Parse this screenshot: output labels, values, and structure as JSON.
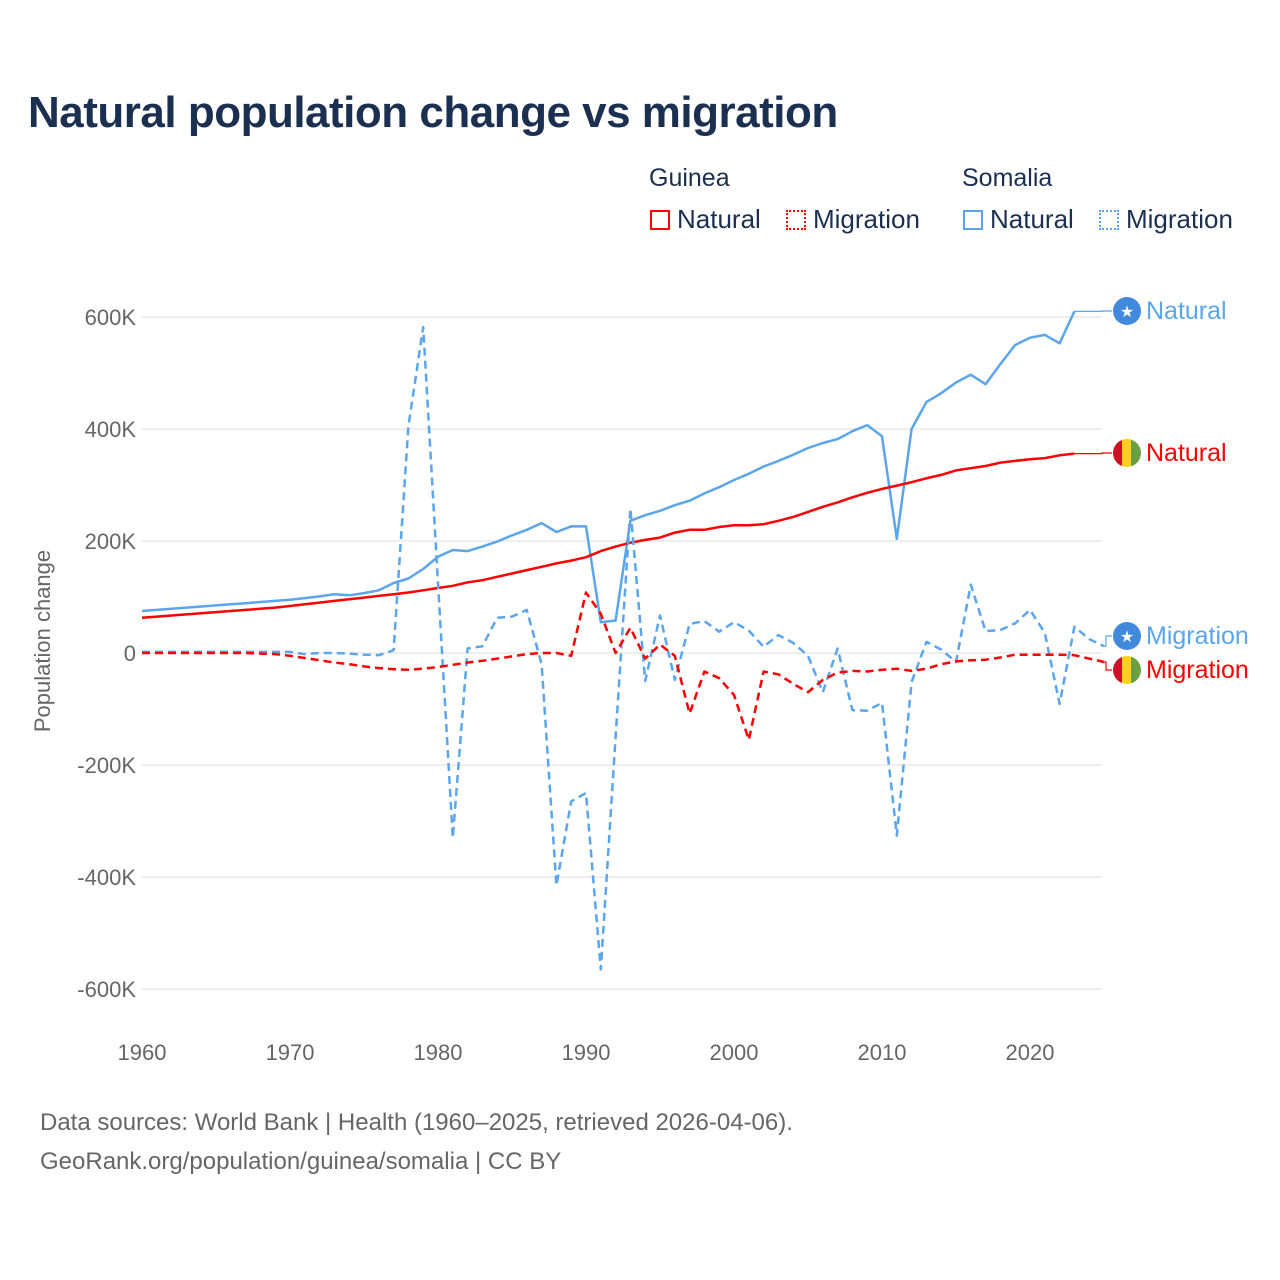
{
  "title": "Natural population change vs migration",
  "legend": {
    "groups": [
      {
        "name": "Guinea",
        "items": [
          "Natural",
          "Migration"
        ],
        "color": "#ff0000"
      },
      {
        "name": "Somalia",
        "items": [
          "Natural",
          "Migration"
        ],
        "color": "#5aa5ec"
      }
    ]
  },
  "footer": {
    "line1": "Data sources: World Bank | Health (1960–2025, retrieved 2026-04-06).",
    "line2": "GeoRank.org/population/guinea/somalia | CC BY"
  },
  "chart_data": {
    "type": "line",
    "title": "Natural population change vs migration",
    "xlabel": "",
    "ylabel": "Population change",
    "xlim": [
      1960,
      2025
    ],
    "ylim": [
      -600000,
      600000
    ],
    "x_ticks": [
      "1960",
      "1970",
      "1980",
      "1990",
      "2000",
      "2010",
      "2020"
    ],
    "y_ticks": [
      {
        "v": 600,
        "label": "600K"
      },
      {
        "v": 400,
        "label": "400K"
      },
      {
        "v": 200,
        "label": "200K"
      },
      {
        "v": 0,
        "label": "0"
      },
      {
        "v": -200,
        "label": "-200K"
      },
      {
        "v": -400,
        "label": "-400K"
      },
      {
        "v": -600,
        "label": "-600K"
      }
    ],
    "units": "thousands",
    "x_start": 1960,
    "series": [
      {
        "name": "Somalia Natural",
        "country": "Somalia",
        "kind": "Natural",
        "color": "#5aa5ec",
        "dash": false,
        "end_label": "Natural",
        "values": [
          75,
          77,
          79,
          81,
          83,
          85,
          87,
          89,
          91,
          93,
          95,
          98,
          101,
          105,
          103,
          107,
          112,
          125,
          133,
          150,
          172,
          184,
          182,
          190,
          199,
          210,
          220,
          232,
          216,
          226,
          226,
          55,
          58,
          236,
          246,
          254,
          264,
          272,
          285,
          296,
          309,
          320,
          333,
          343,
          354,
          366,
          375,
          382,
          396,
          407,
          387,
          204,
          400,
          448,
          464,
          483,
          497,
          480,
          516,
          550,
          563,
          568,
          553,
          610,
          null,
          null
        ]
      },
      {
        "name": "Guinea Natural",
        "country": "Guinea",
        "kind": "Natural",
        "color": "#ff0000",
        "dash": false,
        "end_label": "Natural",
        "values": [
          63,
          65,
          67,
          69,
          71,
          73,
          75,
          77,
          79,
          81,
          84,
          87,
          90,
          93,
          96,
          99,
          102,
          105,
          108,
          112,
          116,
          120,
          126,
          130,
          136,
          142,
          148,
          154,
          160,
          165,
          171,
          182,
          190,
          197,
          202,
          206,
          215,
          220,
          220,
          225,
          228,
          228,
          230,
          236,
          243,
          252,
          261,
          269,
          278,
          286,
          293,
          299,
          305,
          312,
          318,
          326,
          330,
          334,
          340,
          343,
          346,
          348,
          353,
          356,
          null,
          null
        ]
      },
      {
        "name": "Somalia Migration",
        "country": "Somalia",
        "kind": "Migration",
        "color": "#5aa5ec",
        "dash": true,
        "end_label": "Migration",
        "values": [
          2,
          2,
          2,
          2,
          2,
          2,
          2,
          2,
          2,
          2,
          2,
          -2,
          0,
          0,
          -1,
          -3,
          -4,
          5,
          405,
          582,
          125,
          -330,
          8,
          12,
          63,
          65,
          77,
          -20,
          -415,
          -265,
          -250,
          -565,
          -150,
          258,
          -50,
          67,
          -48,
          52,
          57,
          38,
          55,
          40,
          11,
          32,
          18,
          -5,
          -70,
          8,
          -102,
          -103,
          -89,
          -326,
          -52,
          20,
          6,
          -16,
          122,
          39,
          41,
          53,
          77,
          36,
          -91,
          47,
          25,
          12
        ]
      },
      {
        "name": "Guinea Migration",
        "country": "Guinea",
        "kind": "Migration",
        "color": "#ff0000",
        "dash": true,
        "end_label": "Migration",
        "values": [
          0,
          0,
          0,
          0,
          0,
          0,
          0,
          0,
          -1,
          -2,
          -5,
          -9,
          -13,
          -17,
          -20,
          -24,
          -27,
          -29,
          -30,
          -28,
          -25,
          -21,
          -17,
          -14,
          -10,
          -6,
          -2,
          0,
          0,
          -5,
          108,
          70,
          0,
          45,
          -10,
          15,
          -5,
          -108,
          -33,
          -45,
          -75,
          -155,
          -33,
          -38,
          -55,
          -70,
          -48,
          -35,
          -32,
          -33,
          -30,
          -28,
          -32,
          -28,
          -20,
          -15,
          -13,
          -12,
          -8,
          -3,
          -3,
          -3,
          -3,
          -4,
          -10,
          -16
        ]
      }
    ]
  }
}
